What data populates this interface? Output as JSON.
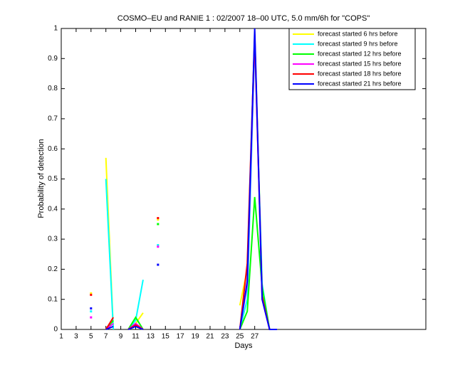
{
  "chart_data": {
    "type": "line",
    "title": "COSMO–EU and RANIE 1 : 02/2007 18–00 UTC, 5.0 mm/6h for \"COPS\"",
    "x_label": "Days",
    "y_label": "Probability of detection",
    "x": [
      1,
      2,
      3,
      4,
      5,
      6,
      7,
      8,
      9,
      10,
      11,
      12,
      13,
      14,
      15,
      16,
      17,
      18,
      19,
      20,
      21,
      22,
      23,
      24,
      25,
      26,
      27,
      28,
      29,
      30
    ],
    "xlim": [
      1,
      50
    ],
    "ylim": [
      0,
      1
    ],
    "xticks": [
      1,
      3,
      5,
      7,
      9,
      11,
      13,
      15,
      17,
      19,
      21,
      23,
      25,
      27
    ],
    "yticks": [
      0,
      0.1,
      0.2,
      0.3,
      0.4,
      0.5,
      0.6,
      0.7,
      0.8,
      0.9,
      1
    ],
    "legend": "top-right",
    "series": [
      {
        "name": "forecast started 6 hrs before",
        "color": "#ffff00",
        "values": [
          null,
          null,
          null,
          null,
          0.12,
          null,
          0.57,
          0,
          null,
          0,
          0.02,
          0.055,
          null,
          0.365,
          null,
          null,
          null,
          null,
          null,
          null,
          null,
          null,
          null,
          null,
          0.08,
          0.2,
          0.99,
          0.13,
          0,
          0
        ]
      },
      {
        "name": "forecast started 9 hrs before",
        "color": "#00ffff",
        "values": [
          null,
          null,
          null,
          null,
          0.06,
          null,
          0.5,
          0,
          null,
          0,
          0.03,
          0.165,
          null,
          0.28,
          null,
          null,
          null,
          null,
          null,
          null,
          null,
          null,
          null,
          null,
          0,
          0.1,
          0.95,
          0.15,
          0,
          0
        ]
      },
      {
        "name": "forecast started 12 hrs before",
        "color": "#00ff00",
        "values": [
          null,
          null,
          null,
          null,
          null,
          null,
          0,
          0.03,
          null,
          0,
          0.04,
          0,
          null,
          0.35,
          null,
          null,
          null,
          null,
          null,
          null,
          null,
          null,
          null,
          null,
          0,
          0.06,
          0.44,
          0.14,
          0,
          0
        ]
      },
      {
        "name": "forecast started 15 hrs before",
        "color": "#ff00ff",
        "values": [
          null,
          null,
          null,
          null,
          0.04,
          null,
          0,
          0.02,
          null,
          0,
          0.02,
          0,
          null,
          0.275,
          null,
          null,
          null,
          null,
          null,
          null,
          null,
          null,
          null,
          null,
          0,
          0.15,
          0.97,
          0.1,
          0,
          0
        ]
      },
      {
        "name": "forecast started 18 hrs before",
        "color": "#ff0000",
        "values": [
          null,
          null,
          null,
          null,
          0.115,
          null,
          0,
          0.04,
          null,
          0,
          0.015,
          0,
          null,
          0.37,
          null,
          null,
          null,
          null,
          null,
          null,
          null,
          null,
          null,
          null,
          0,
          0.22,
          0.98,
          0.11,
          0,
          0
        ]
      },
      {
        "name": "forecast started 21 hrs before",
        "color": "#0000ff",
        "values": [
          null,
          null,
          null,
          null,
          0.07,
          null,
          0,
          0.01,
          null,
          0,
          0.01,
          0,
          null,
          0.215,
          null,
          null,
          null,
          null,
          null,
          null,
          null,
          null,
          null,
          null,
          0,
          0.16,
          1.0,
          0.1,
          0,
          0
        ]
      }
    ]
  }
}
